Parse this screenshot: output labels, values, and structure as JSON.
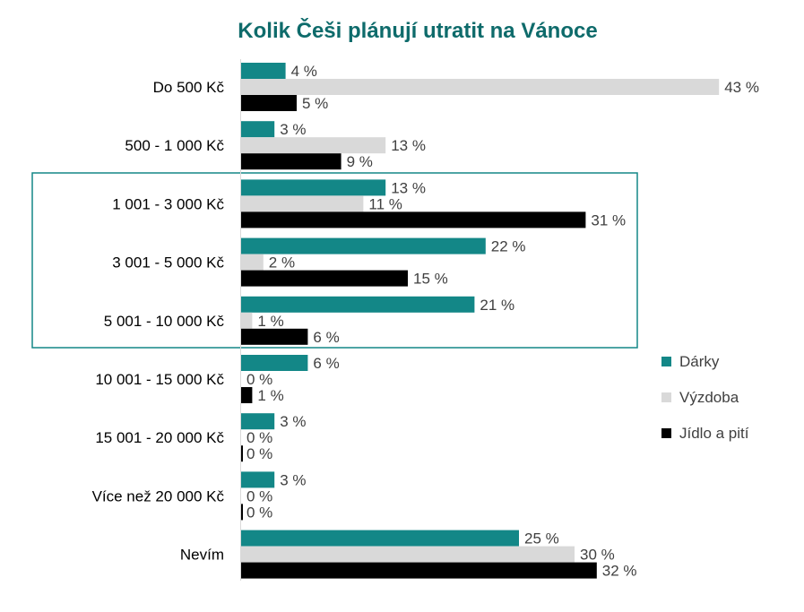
{
  "chart_data": {
    "type": "bar",
    "orientation": "horizontal",
    "title": "Kolik Češi plánují utratit na Vánoce",
    "categories": [
      "Do 500 Kč",
      "500 - 1 000 Kč",
      "1 001 - 3 000 Kč",
      "3 001 - 5 000 Kč",
      "5 001 - 10 000 Kč",
      "10 001 - 15 000 Kč",
      "15 001 - 20 000 Kč",
      "Více než 20 000 Kč",
      "Nevím"
    ],
    "series": [
      {
        "name": "Dárky",
        "color": "#138787",
        "values": [
          4,
          3,
          13,
          22,
          21,
          6,
          3,
          3,
          25
        ]
      },
      {
        "name": "Výzdoba",
        "color": "#d9d9d9",
        "values": [
          43,
          13,
          11,
          2,
          1,
          0,
          0,
          0,
          30
        ]
      },
      {
        "name": "Jídlo a pití",
        "color": "#000000",
        "values": [
          5,
          9,
          31,
          15,
          6,
          1,
          0,
          0,
          32
        ]
      }
    ],
    "value_suffix": " %",
    "legend_position": "right",
    "highlighted_categories": [
      "1 001 - 3 000 Kč",
      "3 001 - 5 000 Kč",
      "5 001 - 10 000 Kč"
    ],
    "highlight_color": "#138787",
    "title_color": "#0e6b6b",
    "grid": false
  }
}
